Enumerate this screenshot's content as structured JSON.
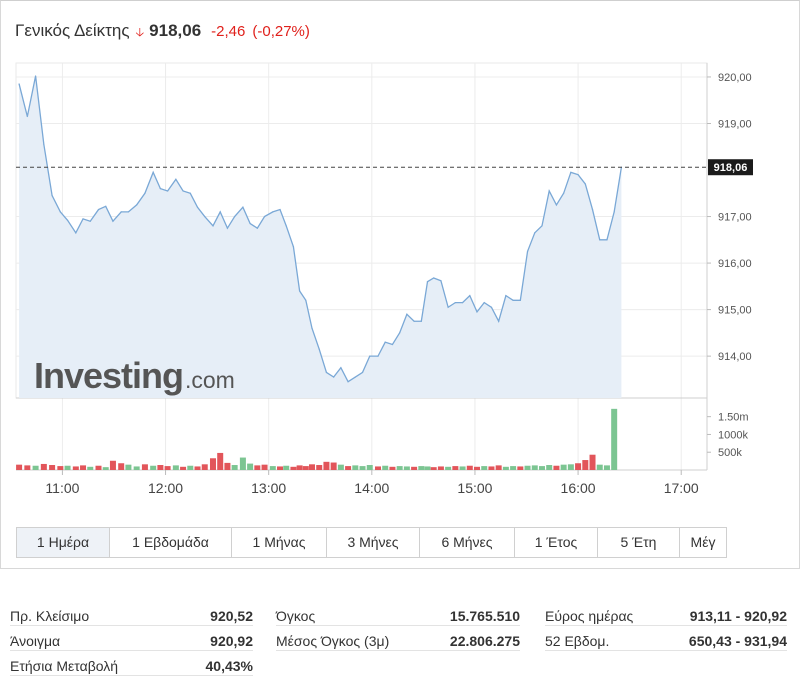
{
  "header": {
    "name": "Γενικός Δείκτης",
    "direction_icon": "arrow-down-icon",
    "last": "918,06",
    "change": "-2,46",
    "change_pct": "(-0,27%)",
    "negative_color": "#e0201b"
  },
  "brand": {
    "logo_main": "Investing",
    "logo_suffix": ".com"
  },
  "chart_data": {
    "type": "area",
    "line_color": "#7aa8d6",
    "fill_color": "#e6eef7",
    "x_tick_labels": [
      "11:00",
      "12:00",
      "13:00",
      "14:00",
      "15:00",
      "16:00",
      "17:00"
    ],
    "x_ticks_hours": [
      11,
      12,
      13,
      14,
      15,
      16,
      17
    ],
    "y_tick_labels": [
      "920,00",
      "919,00",
      "917,00",
      "916,00",
      "915,00",
      "914,00"
    ],
    "y_ticks": [
      920,
      919,
      917,
      916,
      915,
      914
    ],
    "ylim": [
      913.1,
      920.3
    ],
    "xlim_hours": [
      10.55,
      17.25
    ],
    "last_value_label": "918,06",
    "last_value": 918.06,
    "price_series": [
      [
        10.58,
        919.85
      ],
      [
        10.66,
        919.15
      ],
      [
        10.74,
        920.02
      ],
      [
        10.82,
        918.55
      ],
      [
        10.9,
        917.45
      ],
      [
        10.98,
        917.1
      ],
      [
        11.05,
        916.92
      ],
      [
        11.13,
        916.65
      ],
      [
        11.2,
        916.95
      ],
      [
        11.27,
        916.9
      ],
      [
        11.35,
        917.15
      ],
      [
        11.42,
        917.22
      ],
      [
        11.49,
        916.9
      ],
      [
        11.57,
        917.1
      ],
      [
        11.64,
        917.1
      ],
      [
        11.72,
        917.25
      ],
      [
        11.8,
        917.5
      ],
      [
        11.88,
        917.95
      ],
      [
        11.95,
        917.6
      ],
      [
        12.02,
        917.55
      ],
      [
        12.1,
        917.8
      ],
      [
        12.17,
        917.55
      ],
      [
        12.24,
        917.5
      ],
      [
        12.31,
        917.2
      ],
      [
        12.38,
        917.0
      ],
      [
        12.46,
        916.8
      ],
      [
        12.53,
        917.1
      ],
      [
        12.6,
        916.75
      ],
      [
        12.67,
        917.0
      ],
      [
        12.75,
        917.2
      ],
      [
        12.82,
        916.85
      ],
      [
        12.89,
        916.75
      ],
      [
        12.96,
        917.0
      ],
      [
        13.04,
        917.1
      ],
      [
        13.11,
        917.15
      ],
      [
        13.17,
        916.8
      ],
      [
        13.24,
        916.35
      ],
      [
        13.3,
        915.4
      ],
      [
        13.36,
        915.2
      ],
      [
        13.42,
        914.6
      ],
      [
        13.49,
        914.15
      ],
      [
        13.56,
        913.65
      ],
      [
        13.63,
        913.55
      ],
      [
        13.7,
        913.75
      ],
      [
        13.77,
        913.45
      ],
      [
        13.84,
        913.55
      ],
      [
        13.91,
        913.65
      ],
      [
        13.98,
        914.0
      ],
      [
        14.06,
        914.0
      ],
      [
        14.13,
        914.3
      ],
      [
        14.2,
        914.25
      ],
      [
        14.27,
        914.5
      ],
      [
        14.34,
        914.9
      ],
      [
        14.41,
        914.75
      ],
      [
        14.48,
        914.75
      ],
      [
        14.54,
        915.6
      ],
      [
        14.6,
        915.68
      ],
      [
        14.67,
        915.62
      ],
      [
        14.74,
        915.05
      ],
      [
        14.81,
        915.15
      ],
      [
        14.88,
        915.15
      ],
      [
        14.95,
        915.3
      ],
      [
        15.02,
        914.95
      ],
      [
        15.09,
        915.15
      ],
      [
        15.16,
        915.05
      ],
      [
        15.23,
        914.75
      ],
      [
        15.3,
        915.3
      ],
      [
        15.37,
        915.2
      ],
      [
        15.44,
        915.2
      ],
      [
        15.51,
        916.25
      ],
      [
        15.58,
        916.65
      ],
      [
        15.65,
        916.8
      ],
      [
        15.72,
        917.55
      ],
      [
        15.79,
        917.25
      ],
      [
        15.86,
        917.5
      ],
      [
        15.93,
        917.95
      ],
      [
        16.0,
        917.9
      ],
      [
        16.07,
        917.7
      ],
      [
        16.14,
        917.15
      ],
      [
        16.21,
        916.5
      ],
      [
        16.28,
        916.5
      ],
      [
        16.35,
        917.1
      ],
      [
        16.42,
        918.06
      ]
    ],
    "volume_tick_labels": [
      "1.50m",
      "1000k",
      "500k"
    ],
    "volume_ticks": [
      1500000,
      1000000,
      500000
    ],
    "volume_max": 1800000,
    "volume_bars": [
      [
        10.58,
        150000,
        "down"
      ],
      [
        10.66,
        130000,
        "down"
      ],
      [
        10.74,
        120000,
        "up"
      ],
      [
        10.82,
        170000,
        "down"
      ],
      [
        10.9,
        140000,
        "down"
      ],
      [
        10.98,
        110000,
        "down"
      ],
      [
        11.05,
        120000,
        "up"
      ],
      [
        11.13,
        100000,
        "down"
      ],
      [
        11.2,
        130000,
        "down"
      ],
      [
        11.27,
        90000,
        "up"
      ],
      [
        11.35,
        120000,
        "down"
      ],
      [
        11.42,
        80000,
        "up"
      ],
      [
        11.49,
        260000,
        "down"
      ],
      [
        11.57,
        190000,
        "down"
      ],
      [
        11.64,
        150000,
        "up"
      ],
      [
        11.72,
        100000,
        "up"
      ],
      [
        11.8,
        160000,
        "down"
      ],
      [
        11.88,
        120000,
        "up"
      ],
      [
        11.95,
        140000,
        "down"
      ],
      [
        12.02,
        110000,
        "down"
      ],
      [
        12.1,
        130000,
        "up"
      ],
      [
        12.17,
        90000,
        "down"
      ],
      [
        12.24,
        120000,
        "up"
      ],
      [
        12.31,
        100000,
        "down"
      ],
      [
        12.38,
        160000,
        "down"
      ],
      [
        12.46,
        330000,
        "down"
      ],
      [
        12.53,
        480000,
        "down"
      ],
      [
        12.6,
        200000,
        "down"
      ],
      [
        12.67,
        140000,
        "up"
      ],
      [
        12.75,
        350000,
        "up"
      ],
      [
        12.82,
        180000,
        "up"
      ],
      [
        12.89,
        130000,
        "down"
      ],
      [
        12.96,
        150000,
        "down"
      ],
      [
        13.04,
        110000,
        "up"
      ],
      [
        13.11,
        100000,
        "down"
      ],
      [
        13.17,
        120000,
        "up"
      ],
      [
        13.24,
        90000,
        "down"
      ],
      [
        13.3,
        130000,
        "down"
      ],
      [
        13.36,
        110000,
        "down"
      ],
      [
        13.42,
        160000,
        "down"
      ],
      [
        13.49,
        140000,
        "down"
      ],
      [
        13.56,
        230000,
        "down"
      ],
      [
        13.63,
        210000,
        "down"
      ],
      [
        13.7,
        150000,
        "up"
      ],
      [
        13.77,
        110000,
        "down"
      ],
      [
        13.84,
        130000,
        "up"
      ],
      [
        13.91,
        110000,
        "up"
      ],
      [
        13.98,
        140000,
        "up"
      ],
      [
        14.06,
        100000,
        "down"
      ],
      [
        14.13,
        120000,
        "up"
      ],
      [
        14.2,
        90000,
        "down"
      ],
      [
        14.27,
        110000,
        "up"
      ],
      [
        14.34,
        100000,
        "up"
      ],
      [
        14.41,
        90000,
        "down"
      ],
      [
        14.48,
        110000,
        "up"
      ],
      [
        14.54,
        100000,
        "up"
      ],
      [
        14.6,
        80000,
        "down"
      ],
      [
        14.67,
        100000,
        "down"
      ],
      [
        14.74,
        90000,
        "up"
      ],
      [
        14.81,
        110000,
        "down"
      ],
      [
        14.88,
        100000,
        "up"
      ],
      [
        14.95,
        120000,
        "down"
      ],
      [
        15.02,
        90000,
        "down"
      ],
      [
        15.09,
        110000,
        "up"
      ],
      [
        15.16,
        100000,
        "down"
      ],
      [
        15.23,
        130000,
        "down"
      ],
      [
        15.3,
        90000,
        "up"
      ],
      [
        15.37,
        110000,
        "up"
      ],
      [
        15.44,
        100000,
        "down"
      ],
      [
        15.51,
        120000,
        "up"
      ],
      [
        15.58,
        130000,
        "up"
      ],
      [
        15.65,
        110000,
        "up"
      ],
      [
        15.72,
        140000,
        "up"
      ],
      [
        15.79,
        120000,
        "down"
      ],
      [
        15.86,
        150000,
        "up"
      ],
      [
        15.93,
        160000,
        "up"
      ],
      [
        16.0,
        190000,
        "down"
      ],
      [
        16.07,
        280000,
        "down"
      ],
      [
        16.14,
        430000,
        "down"
      ],
      [
        16.21,
        150000,
        "up"
      ],
      [
        16.28,
        130000,
        "up"
      ],
      [
        16.35,
        1720000,
        "up"
      ]
    ],
    "up_color": "#7cc592",
    "down_color": "#e2555a"
  },
  "tabs": [
    {
      "label": "1 Ημέρα",
      "active": true
    },
    {
      "label": "1 Εβδομάδα",
      "active": false
    },
    {
      "label": "1 Μήνας",
      "active": false
    },
    {
      "label": "3 Μήνες",
      "active": false
    },
    {
      "label": "6 Μήνες",
      "active": false
    },
    {
      "label": "1 Έτος",
      "active": false
    },
    {
      "label": "5 Έτη",
      "active": false
    },
    {
      "label": "Μέγ",
      "active": false
    }
  ],
  "stats": {
    "col1": [
      {
        "label": "Πρ. Κλείσιμο",
        "value": "920,52"
      },
      {
        "label": "Άνοιγμα",
        "value": "920,92"
      },
      {
        "label": "Ετήσια Μεταβολή",
        "value": "40,43%"
      }
    ],
    "col2": [
      {
        "label": "Όγκος",
        "value": "15.765.510"
      },
      {
        "label": "Μέσος Όγκος (3μ)",
        "value": "22.806.275"
      }
    ],
    "col3": [
      {
        "label": "Εύρος ημέρας",
        "value": "913,11 - 920,92"
      },
      {
        "label": "52 Εβδομ.",
        "value": "650,43 - 931,94"
      }
    ]
  }
}
